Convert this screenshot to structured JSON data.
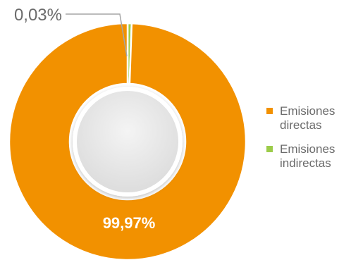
{
  "chart_data": {
    "type": "pie",
    "donut": true,
    "categories": [
      "Emisiones directas",
      "Emisiones indirectas"
    ],
    "values": [
      99.97,
      0.03
    ],
    "data_labels": [
      "99,97%",
      "0,03%"
    ],
    "colors": [
      "#f29100",
      "#9ccc4a"
    ],
    "legend": {
      "position": "right",
      "items": [
        {
          "line1": "Emisiones",
          "line2": "directas"
        },
        {
          "line1": "Emisiones",
          "line2": "indirectas"
        }
      ]
    }
  }
}
